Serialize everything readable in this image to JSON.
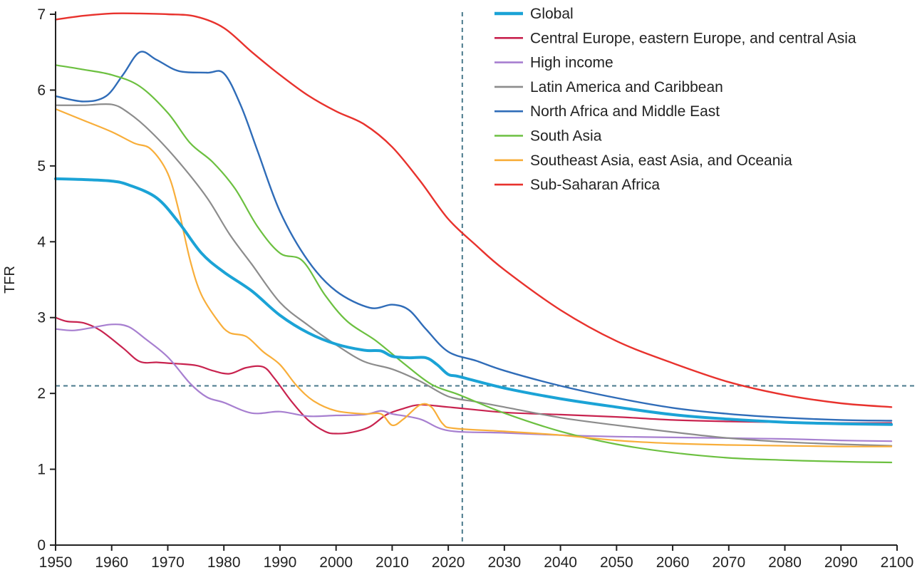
{
  "chart_data": {
    "type": "line",
    "title": "",
    "xlabel": "",
    "ylabel": "TFR",
    "xlim": [
      1950,
      2100
    ],
    "ylim": [
      0,
      7
    ],
    "xticks": [
      1950,
      1960,
      1970,
      1980,
      1990,
      2000,
      2010,
      2020,
      2030,
      2040,
      2050,
      2060,
      2070,
      2080,
      2090,
      2100
    ],
    "yticks": [
      0,
      1,
      2,
      3,
      4,
      5,
      6,
      7
    ],
    "reference_lines": {
      "vertical_x": 2022.5,
      "horizontal_y": 2.1,
      "color": "#4a7a8c"
    },
    "legend_position": "top-right",
    "series": [
      {
        "name": "Global",
        "color": "#1ba3d6",
        "width": 4,
        "points": [
          [
            1950,
            4.83
          ],
          [
            1955,
            4.82
          ],
          [
            1960,
            4.8
          ],
          [
            1963,
            4.75
          ],
          [
            1968,
            4.58
          ],
          [
            1972,
            4.25
          ],
          [
            1976,
            3.85
          ],
          [
            1980,
            3.6
          ],
          [
            1985,
            3.35
          ],
          [
            1990,
            3.03
          ],
          [
            1995,
            2.8
          ],
          [
            2000,
            2.65
          ],
          [
            2005,
            2.57
          ],
          [
            2008,
            2.56
          ],
          [
            2010,
            2.49
          ],
          [
            2013,
            2.47
          ],
          [
            2016,
            2.47
          ],
          [
            2018,
            2.38
          ],
          [
            2020,
            2.25
          ],
          [
            2022,
            2.22
          ],
          [
            2030,
            2.07
          ],
          [
            2040,
            1.93
          ],
          [
            2050,
            1.82
          ],
          [
            2060,
            1.72
          ],
          [
            2070,
            1.66
          ],
          [
            2080,
            1.62
          ],
          [
            2090,
            1.6
          ],
          [
            2099,
            1.59
          ]
        ]
      },
      {
        "name": "Central Europe, eastern Europe, and central Asia",
        "color": "#c8234f",
        "width": 2.2,
        "points": [
          [
            1950,
            3.0
          ],
          [
            1952,
            2.95
          ],
          [
            1955,
            2.93
          ],
          [
            1958,
            2.83
          ],
          [
            1962,
            2.6
          ],
          [
            1965,
            2.42
          ],
          [
            1968,
            2.41
          ],
          [
            1970,
            2.4
          ],
          [
            1975,
            2.37
          ],
          [
            1978,
            2.3
          ],
          [
            1981,
            2.26
          ],
          [
            1984,
            2.34
          ],
          [
            1987,
            2.35
          ],
          [
            1989,
            2.2
          ],
          [
            1992,
            1.9
          ],
          [
            1995,
            1.65
          ],
          [
            1998,
            1.5
          ],
          [
            2000,
            1.47
          ],
          [
            2003,
            1.49
          ],
          [
            2006,
            1.56
          ],
          [
            2009,
            1.72
          ],
          [
            2012,
            1.8
          ],
          [
            2015,
            1.85
          ],
          [
            2020,
            1.82
          ],
          [
            2030,
            1.75
          ],
          [
            2040,
            1.72
          ],
          [
            2050,
            1.69
          ],
          [
            2060,
            1.65
          ],
          [
            2070,
            1.63
          ],
          [
            2080,
            1.62
          ],
          [
            2090,
            1.61
          ],
          [
            2099,
            1.61
          ]
        ]
      },
      {
        "name": "High income",
        "color": "#a77fd0",
        "width": 2.2,
        "points": [
          [
            1950,
            2.85
          ],
          [
            1953,
            2.83
          ],
          [
            1956,
            2.86
          ],
          [
            1960,
            2.91
          ],
          [
            1963,
            2.88
          ],
          [
            1966,
            2.72
          ],
          [
            1970,
            2.48
          ],
          [
            1974,
            2.13
          ],
          [
            1977,
            1.95
          ],
          [
            1980,
            1.88
          ],
          [
            1985,
            1.74
          ],
          [
            1990,
            1.76
          ],
          [
            1995,
            1.7
          ],
          [
            2000,
            1.71
          ],
          [
            2005,
            1.72
          ],
          [
            2008,
            1.77
          ],
          [
            2010,
            1.73
          ],
          [
            2015,
            1.66
          ],
          [
            2020,
            1.51
          ],
          [
            2030,
            1.48
          ],
          [
            2040,
            1.45
          ],
          [
            2050,
            1.43
          ],
          [
            2060,
            1.42
          ],
          [
            2070,
            1.41
          ],
          [
            2080,
            1.4
          ],
          [
            2090,
            1.38
          ],
          [
            2099,
            1.37
          ]
        ]
      },
      {
        "name": "Latin America and Caribbean",
        "color": "#8c8c8c",
        "width": 2.2,
        "points": [
          [
            1950,
            5.8
          ],
          [
            1955,
            5.8
          ],
          [
            1960,
            5.81
          ],
          [
            1963,
            5.7
          ],
          [
            1967,
            5.45
          ],
          [
            1972,
            5.05
          ],
          [
            1977,
            4.58
          ],
          [
            1981,
            4.1
          ],
          [
            1985,
            3.7
          ],
          [
            1990,
            3.2
          ],
          [
            1995,
            2.9
          ],
          [
            2000,
            2.64
          ],
          [
            2005,
            2.42
          ],
          [
            2010,
            2.32
          ],
          [
            2015,
            2.16
          ],
          [
            2020,
            1.96
          ],
          [
            2025,
            1.89
          ],
          [
            2030,
            1.82
          ],
          [
            2040,
            1.68
          ],
          [
            2050,
            1.58
          ],
          [
            2060,
            1.49
          ],
          [
            2070,
            1.41
          ],
          [
            2080,
            1.36
          ],
          [
            2090,
            1.33
          ],
          [
            2099,
            1.31
          ]
        ]
      },
      {
        "name": "North Africa and Middle East",
        "color": "#2f6cb8",
        "width": 2.4,
        "points": [
          [
            1950,
            5.92
          ],
          [
            1955,
            5.85
          ],
          [
            1959,
            5.92
          ],
          [
            1962,
            6.2
          ],
          [
            1965,
            6.5
          ],
          [
            1968,
            6.4
          ],
          [
            1972,
            6.25
          ],
          [
            1977,
            6.23
          ],
          [
            1980,
            6.22
          ],
          [
            1983,
            5.8
          ],
          [
            1986,
            5.2
          ],
          [
            1990,
            4.4
          ],
          [
            1995,
            3.75
          ],
          [
            2000,
            3.35
          ],
          [
            2006,
            3.13
          ],
          [
            2010,
            3.17
          ],
          [
            2013,
            3.1
          ],
          [
            2016,
            2.85
          ],
          [
            2020,
            2.55
          ],
          [
            2025,
            2.43
          ],
          [
            2030,
            2.3
          ],
          [
            2040,
            2.1
          ],
          [
            2050,
            1.94
          ],
          [
            2060,
            1.81
          ],
          [
            2070,
            1.73
          ],
          [
            2080,
            1.68
          ],
          [
            2090,
            1.65
          ],
          [
            2099,
            1.64
          ]
        ]
      },
      {
        "name": "South Asia",
        "color": "#6cc040",
        "width": 2.2,
        "points": [
          [
            1950,
            6.33
          ],
          [
            1955,
            6.27
          ],
          [
            1960,
            6.2
          ],
          [
            1965,
            6.05
          ],
          [
            1970,
            5.7
          ],
          [
            1974,
            5.3
          ],
          [
            1978,
            5.05
          ],
          [
            1982,
            4.7
          ],
          [
            1986,
            4.2
          ],
          [
            1990,
            3.85
          ],
          [
            1994,
            3.75
          ],
          [
            1998,
            3.3
          ],
          [
            2002,
            2.95
          ],
          [
            2007,
            2.7
          ],
          [
            2012,
            2.4
          ],
          [
            2017,
            2.12
          ],
          [
            2022,
            1.98
          ],
          [
            2030,
            1.74
          ],
          [
            2040,
            1.5
          ],
          [
            2050,
            1.33
          ],
          [
            2060,
            1.22
          ],
          [
            2070,
            1.15
          ],
          [
            2080,
            1.12
          ],
          [
            2090,
            1.1
          ],
          [
            2099,
            1.09
          ]
        ]
      },
      {
        "name": "Southeast Asia, east Asia, and Oceania",
        "color": "#f8ae3a",
        "width": 2.2,
        "points": [
          [
            1950,
            5.75
          ],
          [
            1955,
            5.6
          ],
          [
            1960,
            5.45
          ],
          [
            1964,
            5.3
          ],
          [
            1967,
            5.22
          ],
          [
            1970,
            4.9
          ],
          [
            1972,
            4.4
          ],
          [
            1974,
            3.75
          ],
          [
            1976,
            3.3
          ],
          [
            1979,
            2.95
          ],
          [
            1981,
            2.8
          ],
          [
            1984,
            2.75
          ],
          [
            1987,
            2.55
          ],
          [
            1990,
            2.38
          ],
          [
            1993,
            2.1
          ],
          [
            1996,
            1.9
          ],
          [
            2000,
            1.77
          ],
          [
            2005,
            1.73
          ],
          [
            2008,
            1.73
          ],
          [
            2010,
            1.58
          ],
          [
            2012,
            1.66
          ],
          [
            2015,
            1.85
          ],
          [
            2017,
            1.82
          ],
          [
            2019,
            1.6
          ],
          [
            2021,
            1.54
          ],
          [
            2030,
            1.5
          ],
          [
            2040,
            1.45
          ],
          [
            2050,
            1.38
          ],
          [
            2060,
            1.34
          ],
          [
            2070,
            1.32
          ],
          [
            2080,
            1.31
          ],
          [
            2090,
            1.3
          ],
          [
            2099,
            1.3
          ]
        ]
      },
      {
        "name": "Sub-Saharan Africa",
        "color": "#e8322d",
        "width": 2.4,
        "points": [
          [
            1950,
            6.93
          ],
          [
            1955,
            6.98
          ],
          [
            1960,
            7.01
          ],
          [
            1965,
            7.01
          ],
          [
            1970,
            7.0
          ],
          [
            1975,
            6.97
          ],
          [
            1980,
            6.82
          ],
          [
            1985,
            6.5
          ],
          [
            1990,
            6.2
          ],
          [
            1995,
            5.93
          ],
          [
            2000,
            5.72
          ],
          [
            2005,
            5.55
          ],
          [
            2010,
            5.25
          ],
          [
            2015,
            4.8
          ],
          [
            2020,
            4.3
          ],
          [
            2025,
            3.95
          ],
          [
            2030,
            3.63
          ],
          [
            2040,
            3.1
          ],
          [
            2050,
            2.69
          ],
          [
            2060,
            2.4
          ],
          [
            2070,
            2.15
          ],
          [
            2080,
            1.98
          ],
          [
            2090,
            1.87
          ],
          [
            2099,
            1.82
          ]
        ]
      }
    ]
  }
}
